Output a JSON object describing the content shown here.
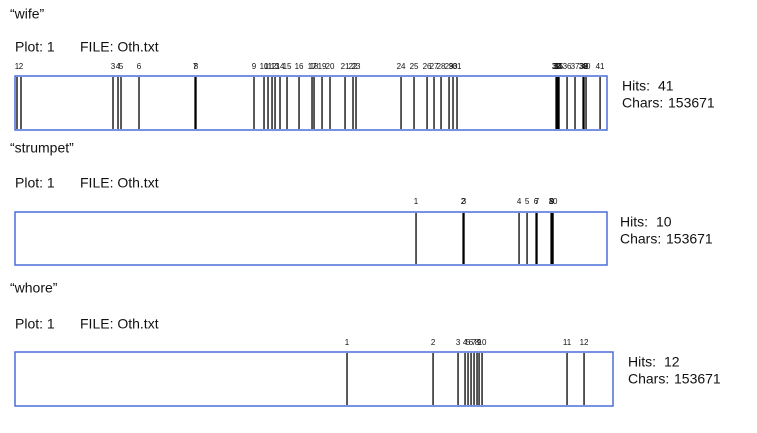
{
  "chart_data": [
    {
      "type": "dispersion",
      "title": "“wife”",
      "plot": "Plot: 1",
      "file": "FILE: Oth.txt",
      "hits_label": "Hits:",
      "hits": 41,
      "chars_label": "Chars:",
      "chars": 153671,
      "labels": [
        1,
        2,
        3,
        4,
        5,
        6,
        7,
        8,
        9,
        10,
        11,
        12,
        13,
        14,
        15,
        16,
        17,
        18,
        19,
        20,
        21,
        22,
        23,
        24,
        25,
        26,
        27,
        28,
        29,
        30,
        31,
        32,
        33,
        34,
        35,
        36,
        37,
        38,
        39,
        40,
        41
      ],
      "positions": [
        520,
        1558,
        25440,
        26740,
        27520,
        32190,
        46730,
        46990,
        62040,
        64640,
        65680,
        66720,
        67500,
        68790,
        70610,
        73730,
        77100,
        77620,
        79700,
        81770,
        85670,
        87740,
        88520,
        100210,
        103580,
        106960,
        108770,
        110590,
        112670,
        113700,
        114740,
        140440,
        140700,
        140960,
        141220,
        143300,
        145370,
        147450,
        147710,
        148230,
        151870
      ],
      "color": "#4a6fd8"
    },
    {
      "type": "dispersion",
      "title": "“strumpet”",
      "plot": "Plot: 1",
      "file": "FILE: Oth.txt",
      "hits_label": "Hits:",
      "hits": 10,
      "chars_label": "Chars:",
      "chars": 153671,
      "labels": [
        1,
        2,
        3,
        4,
        5,
        6,
        7,
        8,
        9,
        10
      ],
      "positions": [
        104100,
        116300,
        116560,
        130840,
        132920,
        135250,
        135510,
        139150,
        139410,
        139670
      ],
      "color": "#4a6fd8"
    },
    {
      "type": "dispersion",
      "title": "“whore”",
      "plot": "Plot: 1",
      "file": "FILE: Oth.txt",
      "hits_label": "Hits:",
      "hits": 12,
      "chars_label": "Chars:",
      "chars": 153671,
      "labels": [
        1,
        2,
        3,
        4,
        5,
        6,
        7,
        8,
        9,
        10,
        11,
        12
      ],
      "positions": [
        85320,
        107430,
        113850,
        115650,
        116420,
        117190,
        117960,
        118730,
        119250,
        120020,
        141860,
        146230
      ],
      "color": "#4a6fd8"
    }
  ]
}
